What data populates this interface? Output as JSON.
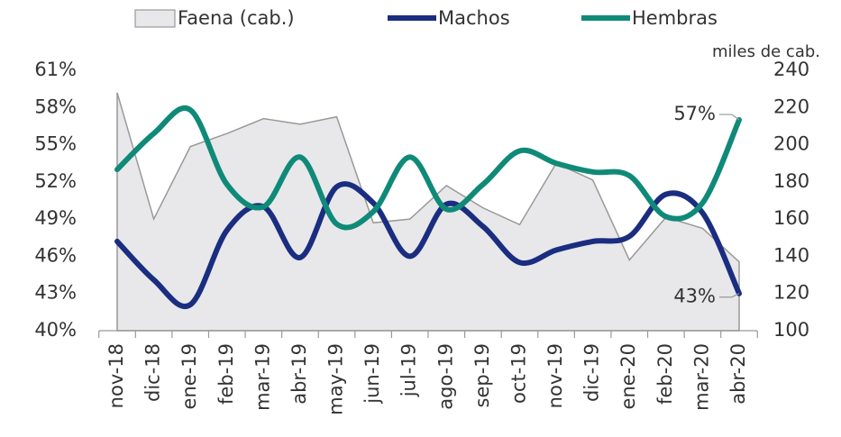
{
  "chart_data": {
    "type": "line",
    "y2_label": "miles de cab.",
    "categories": [
      "nov-18",
      "dic-18",
      "ene-19",
      "feb-19",
      "mar-19",
      "abr-19",
      "may-19",
      "jun-19",
      "jul-19",
      "ago-19",
      "sep-19",
      "oct-19",
      "nov-19",
      "dic-19",
      "ene-20",
      "feb-20",
      "mar-20",
      "abr-20"
    ],
    "series": [
      {
        "name": "Faena (cab.)",
        "type": "area",
        "axis": "y2",
        "color": "#e8e8ea",
        "stroke": "#999999",
        "values": [
          228,
          160,
          199,
          206,
          214,
          211,
          215,
          158,
          160,
          178,
          166,
          157,
          190,
          181,
          138,
          161,
          155,
          137
        ]
      },
      {
        "name": "Machos",
        "type": "line",
        "color": "#1a2d80",
        "values": [
          47.2,
          44.1,
          42.1,
          48.1,
          50.0,
          45.9,
          51.6,
          50.3,
          46.0,
          50.2,
          48.4,
          45.5,
          46.5,
          47.2,
          47.6,
          51.0,
          49.5,
          43
        ],
        "value_labels": [
          null,
          null,
          null,
          null,
          null,
          null,
          null,
          null,
          null,
          null,
          null,
          null,
          null,
          null,
          null,
          null,
          null,
          "43%"
        ]
      },
      {
        "name": "Hembras",
        "type": "line",
        "color": "#0f8a78",
        "values": [
          53.0,
          55.9,
          57.8,
          51.8,
          50.0,
          54.0,
          48.6,
          49.6,
          54.0,
          49.8,
          51.8,
          54.5,
          53.5,
          52.8,
          52.5,
          49.2,
          50.3,
          57
        ],
        "value_labels": [
          null,
          null,
          null,
          null,
          null,
          null,
          null,
          null,
          null,
          null,
          null,
          null,
          null,
          null,
          null,
          null,
          null,
          "57%"
        ]
      }
    ],
    "ylim": [
      40,
      61
    ],
    "yticks": [
      {
        "value": 40,
        "label": "40%"
      },
      {
        "value": 43,
        "label": "43%"
      },
      {
        "value": 46,
        "label": "46%"
      },
      {
        "value": 49,
        "label": "49%"
      },
      {
        "value": 52,
        "label": "52%"
      },
      {
        "value": 55,
        "label": "55%"
      },
      {
        "value": 58,
        "label": "58%"
      },
      {
        "value": 61,
        "label": "61%"
      }
    ],
    "y2lim": [
      100,
      240
    ],
    "y2ticks": [
      100,
      120,
      140,
      160,
      180,
      200,
      220,
      240
    ],
    "legend": "top"
  }
}
